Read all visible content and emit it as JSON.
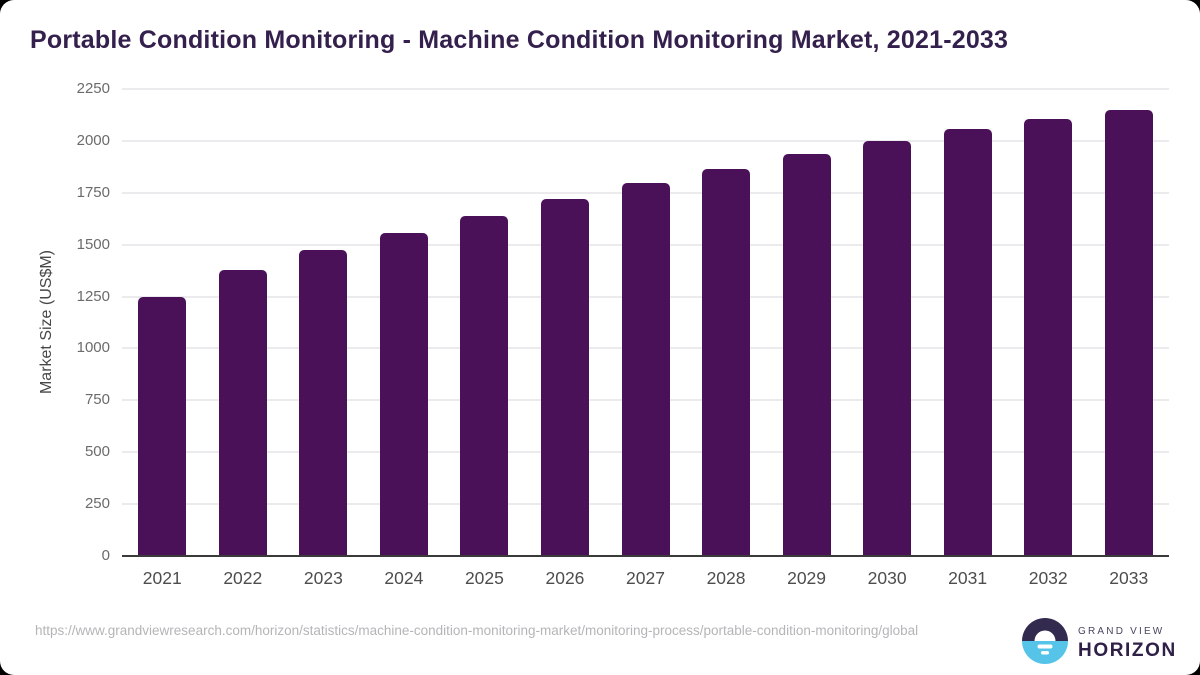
{
  "page": {
    "title": "Portable Condition Monitoring - Machine Condition Monitoring Market, 2021-2033"
  },
  "chart_data": {
    "type": "bar",
    "title": "Portable Condition Monitoring - Machine Condition Monitoring Market, 2021-2033",
    "categories": [
      "2021",
      "2022",
      "2023",
      "2024",
      "2025",
      "2026",
      "2027",
      "2028",
      "2029",
      "2030",
      "2031",
      "2032",
      "2033"
    ],
    "values": [
      1250,
      1380,
      1475,
      1555,
      1640,
      1720,
      1795,
      1865,
      1935,
      2000,
      2055,
      2105,
      2150
    ],
    "xlabel": "",
    "ylabel": "Market Size (US$M)",
    "ylim": [
      0,
      2250
    ],
    "yticks": [
      0,
      250,
      500,
      750,
      1000,
      1250,
      1500,
      1750,
      2000,
      2250
    ],
    "grid": true,
    "legend_position": "none",
    "bar_color": "#4a1158"
  },
  "footer": {
    "source_url": "https://www.grandviewresearch.com/horizon/statistics/machine-condition-monitoring-market/monitoring-process/portable-condition-monitoring/global",
    "logo": {
      "top": "GRAND VIEW",
      "bottom": "HORIZON"
    }
  },
  "colors": {
    "bar": "#4a1158",
    "title_text": "#34204c",
    "logo_dark": "#332a4f",
    "logo_cyan": "#56c4e9",
    "gridline": "#ebebed",
    "baseline": "#3a3a3a"
  }
}
